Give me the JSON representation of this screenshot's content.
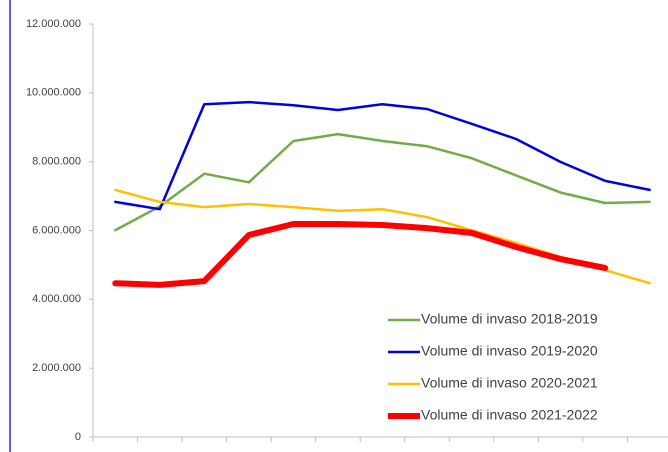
{
  "chart_data": {
    "type": "line",
    "categories": [
      null,
      null,
      null,
      null,
      null,
      null,
      null,
      null,
      null,
      null,
      null,
      null,
      null
    ],
    "series": [
      {
        "name": "Volume di invaso 2018-2019",
        "color": "#70ad47",
        "width": 2.5,
        "values": [
          6010000,
          6700000,
          7650000,
          7400000,
          8600000,
          8800000,
          8600000,
          8450000,
          8100000,
          7600000,
          7100000,
          6800000,
          6830000
        ]
      },
      {
        "name": "Volume di invaso 2019-2020",
        "color": "#0000e0",
        "width": 2.5,
        "values": [
          6830000,
          6620000,
          9670000,
          9730000,
          9640000,
          9500000,
          9670000,
          9530000,
          9100000,
          8660000,
          7990000,
          7440000,
          7180000
        ]
      },
      {
        "name": "Volume di invaso 2020-2021",
        "color": "#ffc000",
        "width": 2.5,
        "values": [
          7180000,
          6830000,
          6680000,
          6770000,
          6680000,
          6570000,
          6620000,
          6390000,
          6010000,
          5640000,
          5230000,
          4850000,
          4470000
        ]
      },
      {
        "name": "Volume di invaso 2021-2022",
        "color": "#ff0000",
        "width": 6,
        "values": [
          4470000,
          4420000,
          4530000,
          5870000,
          6190000,
          6190000,
          6160000,
          6070000,
          5930000,
          5520000,
          5170000,
          4910000,
          null
        ]
      }
    ],
    "ylim": [
      0,
      12000000
    ],
    "yticks": [
      0,
      {
        "value": 2000000,
        "label": "2.000.000"
      },
      {
        "value": 4000000,
        "label": "4.000.000"
      },
      {
        "value": 6000000,
        "label": "6.000.000"
      },
      {
        "value": 8000000,
        "label": "8.000.000"
      },
      {
        "value": 10000000,
        "label": "10.000.000"
      },
      {
        "value": 12000000,
        "label": "12.000.000"
      }
    ],
    "grid": false,
    "legend": "lower right"
  }
}
